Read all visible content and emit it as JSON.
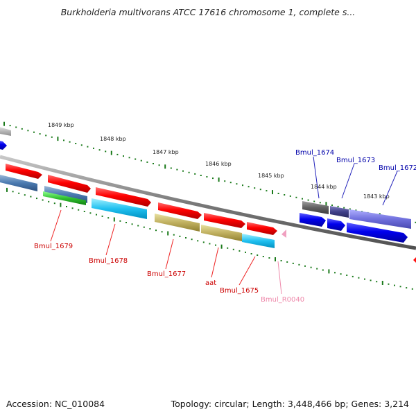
{
  "title": "Burkholderia multivorans ATCC 17616 chromosome 1, complete s...",
  "footer": {
    "accession": "Accession: NC_010084",
    "topology": "Topology: circular; Length: 3,448,466 bp; Genes: 3,214"
  },
  "colors": {
    "backbone": "#7a7a7a",
    "tick": "#1a7a1a",
    "label_red": "#cc0000",
    "label_blue": "#0000aa",
    "label_pink": "#ee88aa"
  },
  "scale_labels": [
    "1849 kbp",
    "1848 kbp",
    "1847 kbp",
    "1846 kbp",
    "1845 kbp",
    "1844 kbp",
    "1843 kbp"
  ],
  "gene_labels": [
    {
      "name": "Bmul_1679",
      "color": "#cc0000"
    },
    {
      "name": "Bmul_1678",
      "color": "#cc0000"
    },
    {
      "name": "Bmul_1677",
      "color": "#cc0000"
    },
    {
      "name": "aat",
      "color": "#cc0000"
    },
    {
      "name": "Bmul_1675",
      "color": "#cc0000"
    },
    {
      "name": "Bmul_R0040",
      "color": "#ee88aa"
    },
    {
      "name": "Bmul_1674",
      "color": "#0000aa"
    },
    {
      "name": "Bmul_1673",
      "color": "#0000aa"
    },
    {
      "name": "Bmul_1672",
      "color": "#0000aa"
    }
  ]
}
